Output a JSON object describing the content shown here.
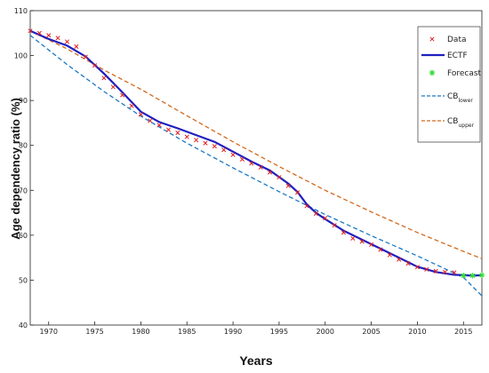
{
  "chart_data": {
    "type": "line",
    "xlabel": "Years",
    "ylabel": "Age dependency ratio (%)",
    "xlim": [
      1968,
      2017
    ],
    "ylim": [
      40,
      110
    ],
    "xticks": [
      1970,
      1975,
      1980,
      1985,
      1990,
      1995,
      2000,
      2005,
      2010,
      2015
    ],
    "yticks": [
      40,
      50,
      60,
      70,
      80,
      90,
      100,
      110
    ],
    "grid": false,
    "legend_position": "top-right",
    "colors": {
      "data": "#e02020",
      "ectf": "#1f1fbf",
      "forecast": "#33dd33",
      "cb_lower": "#1a78c2",
      "cb_upper": "#d2691e"
    },
    "series": [
      {
        "name": "Data",
        "style": "markers",
        "marker": "x",
        "x": [
          1968,
          1969,
          1970,
          1971,
          1972,
          1973,
          1974,
          1975,
          1976,
          1977,
          1978,
          1979,
          1980,
          1981,
          1982,
          1983,
          1984,
          1985,
          1986,
          1987,
          1988,
          1989,
          1990,
          1991,
          1992,
          1993,
          1994,
          1995,
          1996,
          1997,
          1998,
          1999,
          2000,
          2001,
          2002,
          2003,
          2004,
          2005,
          2006,
          2007,
          2008,
          2009,
          2010,
          2011,
          2012,
          2013,
          2014
        ],
        "values": [
          105.5,
          105.0,
          104.5,
          103.9,
          103.1,
          102.0,
          99.7,
          97.8,
          95.0,
          93.0,
          91.2,
          88.8,
          86.9,
          85.5,
          84.5,
          83.5,
          82.8,
          81.9,
          81.2,
          80.5,
          79.8,
          79.0,
          77.9,
          76.9,
          76.0,
          75.1,
          74.0,
          72.9,
          71.0,
          69.5,
          66.5,
          64.8,
          63.8,
          62.2,
          60.6,
          59.3,
          58.6,
          57.9,
          56.8,
          55.6,
          54.6,
          53.7,
          52.9,
          52.4,
          52.0,
          51.8,
          51.7
        ]
      },
      {
        "name": "ECTF",
        "style": "solid",
        "x": [
          1968,
          1970,
          1972,
          1974,
          1976,
          1978,
          1980,
          1982,
          1984,
          1986,
          1988,
          1990,
          1992,
          1994,
          1996,
          1997,
          1998,
          1999,
          2000,
          2002,
          2004,
          2006,
          2008,
          2010,
          2012,
          2014,
          2016,
          2017
        ],
        "values": [
          105.5,
          103.7,
          102.2,
          99.8,
          96.0,
          91.8,
          87.5,
          85.2,
          83.8,
          82.3,
          80.8,
          78.6,
          76.4,
          74.4,
          71.5,
          69.6,
          66.9,
          65.0,
          63.6,
          61.0,
          59.0,
          57.0,
          55.0,
          53.0,
          51.8,
          51.2,
          51.0,
          51.1
        ]
      },
      {
        "name": "Forecast",
        "style": "markers",
        "marker": "asterisk",
        "x": [
          2015,
          2016,
          2017
        ],
        "values": [
          51.0,
          51.0,
          51.1
        ]
      },
      {
        "name": "CB_lower",
        "style": "dashed",
        "x": [
          1968,
          1972,
          1976,
          1980,
          1985,
          1990,
          1995,
          2000,
          2005,
          2010,
          2015,
          2017
        ],
        "values": [
          104.5,
          98.0,
          92.0,
          86.5,
          80.5,
          75.0,
          69.7,
          64.6,
          59.9,
          55.4,
          50.6,
          46.5
        ]
      },
      {
        "name": "CB_upper",
        "style": "dashed",
        "x": [
          1968,
          1972,
          1976,
          1980,
          1985,
          1990,
          1995,
          2000,
          2005,
          2010,
          2015,
          2017
        ],
        "values": [
          105.5,
          101.5,
          96.8,
          92.5,
          86.6,
          80.8,
          75.3,
          70.0,
          65.2,
          60.6,
          56.4,
          54.8
        ]
      }
    ],
    "legend": [
      {
        "label": "Data",
        "sub": ""
      },
      {
        "label": "ECTF",
        "sub": ""
      },
      {
        "label": "Forecast",
        "sub": ""
      },
      {
        "label": "CB",
        "sub": "lower"
      },
      {
        "label": "CB",
        "sub": "upper"
      }
    ]
  }
}
